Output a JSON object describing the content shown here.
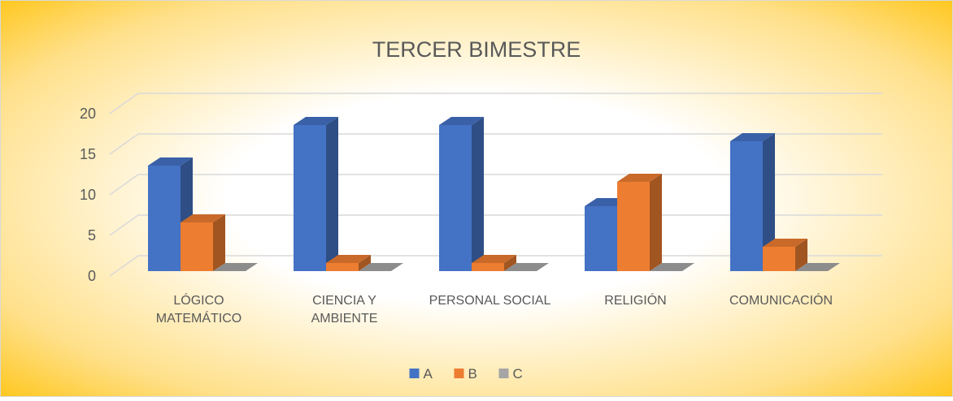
{
  "chart_data": {
    "type": "bar3d",
    "title": "TERCER BIMESTRE",
    "categories": [
      "LÓGICO MATEMÁTICO",
      "CIENCIA Y AMBIENTE",
      "PERSONAL SOCIAL",
      "RELIGIÓN",
      "COMUNICACIÓN"
    ],
    "series": [
      {
        "name": "A",
        "color": "#4472c4",
        "values": [
          13,
          18,
          18,
          8,
          16
        ]
      },
      {
        "name": "B",
        "color": "#ed7d31",
        "values": [
          6,
          1,
          1,
          11,
          3
        ]
      },
      {
        "name": "C",
        "color": "#a5a5a5",
        "values": [
          0,
          0,
          0,
          0,
          0
        ]
      }
    ],
    "ylim": [
      0,
      20
    ],
    "yticks": [
      0,
      5,
      10,
      15,
      20
    ],
    "grid": true,
    "legend": "bottom"
  }
}
